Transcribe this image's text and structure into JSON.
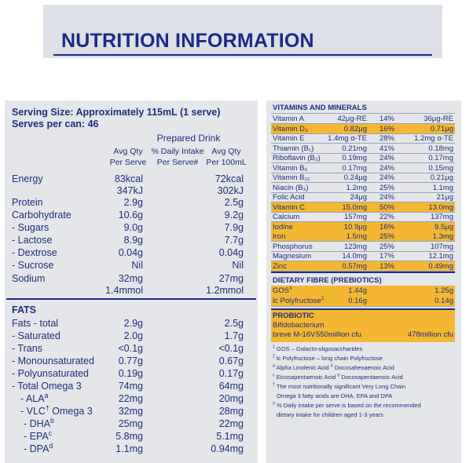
{
  "title": "NUTRITION INFORMATION",
  "serving": {
    "size": "Serving Size: Approximately 115mL (1 serve)",
    "per_can": "Serves per can: 46"
  },
  "headers": {
    "prepared": "Prepared Drink",
    "col1": [
      "Avg Qty",
      "Per Serve"
    ],
    "col2": [
      "% Daily Intake",
      "Per Serve#"
    ],
    "col3": [
      "Avg Qty",
      "Per 100mL"
    ]
  },
  "nutrients": [
    {
      "label": "Energy",
      "per_serve": "83kcal",
      "per_100": "72kcal"
    },
    {
      "label": "",
      "per_serve": "347kJ",
      "per_100": "302kJ"
    },
    {
      "label": "Protein",
      "per_serve": "2.9g",
      "per_100": "2.5g"
    },
    {
      "label": "Carbohydrate",
      "per_serve": "10.6g",
      "per_100": "9.2g"
    },
    {
      "label": "- Sugars",
      "per_serve": "9.0g",
      "per_100": "7.9g"
    },
    {
      "label": "- Lactose",
      "per_serve": "8.9g",
      "per_100": "7.7g"
    },
    {
      "label": "- Dextrose",
      "per_serve": "0.04g",
      "per_100": "0.04g"
    },
    {
      "label": "- Sucrose",
      "per_serve": "Nil",
      "per_100": "Nil"
    },
    {
      "label": "Sodium",
      "per_serve": "32mg",
      "per_100": "27mg"
    },
    {
      "label": "",
      "per_serve": "1.4mmol",
      "per_100": "1.2mmol"
    }
  ],
  "fats": {
    "heading": "FATS",
    "rows": [
      {
        "label": "Fats - total",
        "sup": "",
        "label_after": "",
        "per_serve": "2.9g",
        "per_100": "2.5g"
      },
      {
        "label": "- Saturated",
        "sup": "",
        "label_after": "",
        "per_serve": "2.0g",
        "per_100": "1.7g"
      },
      {
        "label": "- Trans",
        "sup": "",
        "label_after": "",
        "per_serve": "<0.1g",
        "per_100": "<0.1g"
      },
      {
        "label": "- Monounsaturated",
        "sup": "",
        "label_after": "",
        "per_serve": "0.77g",
        "per_100": "0.67g"
      },
      {
        "label": "- Polyunsaturated",
        "sup": "",
        "label_after": "",
        "per_serve": "0.19g",
        "per_100": "0.17g"
      },
      {
        "label": "- Total Omega 3",
        "sup": "",
        "label_after": "",
        "per_serve": "74mg",
        "per_100": "64mg"
      },
      {
        "label": "- ALA",
        "sup": "a",
        "label_after": "",
        "per_serve": "22mg",
        "per_100": "20mg"
      },
      {
        "label": "- VLC",
        "sup": "†",
        "label_after": " Omega 3",
        "per_serve": "32mg",
        "per_100": "28mg"
      },
      {
        "label": "- DHA",
        "sup": "b",
        "label_after": "",
        "per_serve": "25mg",
        "per_100": "22mg"
      },
      {
        "label": "- EPA",
        "sup": "c",
        "label_after": "",
        "per_serve": "5.8mg",
        "per_100": "5.1mg"
      },
      {
        "label": "- DPA",
        "sup": "d",
        "label_after": "",
        "per_serve": "1.1mg",
        "per_100": "0.94mg"
      }
    ]
  },
  "vitamins": {
    "heading": "VITAMINS AND MINERALS",
    "highlight_color": "#f3b731",
    "rows": [
      {
        "label": "Vitamin A",
        "per_serve": "42μg-RE",
        "pct": "14%",
        "per_100": "36μg-RE",
        "highlight": false
      },
      {
        "label": "Vitamin D₃",
        "per_serve": "0.82μg",
        "pct": "16%",
        "per_100": "0.71μg",
        "highlight": true
      },
      {
        "label": "Vitamin E",
        "per_serve": "1.4mg α-TE",
        "pct": "28%",
        "per_100": "1.2mg α-TE",
        "highlight": false
      },
      {
        "label": "Thiamin (B₁)",
        "per_serve": "0.21mg",
        "pct": "41%",
        "per_100": "0.18mg",
        "highlight": false
      },
      {
        "label": "Riboflavin (B₂)",
        "per_serve": "0.19mg",
        "pct": "24%",
        "per_100": "0.17mg",
        "highlight": false
      },
      {
        "label": "Vitamin B₆",
        "per_serve": "0.17mg",
        "pct": "24%",
        "per_100": "0.15mg",
        "highlight": false
      },
      {
        "label": "Vitamin B₁₂",
        "per_serve": "0.24μg",
        "pct": "24%",
        "per_100": "0.21μg",
        "highlight": false
      },
      {
        "label": "Niacin (B₃)",
        "per_serve": "1.2mg",
        "pct": "25%",
        "per_100": "1.1mg",
        "highlight": false
      },
      {
        "label": "Folic Acid",
        "per_serve": "24μg",
        "pct": "24%",
        "per_100": "21μg",
        "highlight": false
      },
      {
        "label": "Vitamin C",
        "per_serve": "15.0mg",
        "pct": "50%",
        "per_100": "13.0mg",
        "highlight": true
      },
      {
        "label": "Calcium",
        "per_serve": "157mg",
        "pct": "22%",
        "per_100": "137mg",
        "highlight": false
      },
      {
        "label": "Iodine",
        "per_serve": "10.9μg",
        "pct": "16%",
        "per_100": "9.5μg",
        "highlight": true
      },
      {
        "label": "Iron",
        "per_serve": "1.5mg",
        "pct": "25%",
        "per_100": "1.3mg",
        "highlight": true
      },
      {
        "label": "Phosphorus",
        "per_serve": "123mg",
        "pct": "25%",
        "per_100": "107mg",
        "highlight": false
      },
      {
        "label": "Magnesium",
        "per_serve": "14.0mg",
        "pct": "17%",
        "per_100": "12.1mg",
        "highlight": false
      },
      {
        "label": "Zinc",
        "per_serve": "0.57mg",
        "pct": "13%",
        "per_100": "0.49mg",
        "highlight": true
      }
    ]
  },
  "fibre": {
    "heading": "DIETARY FIBRE (PREBIOTICS)",
    "rows": [
      {
        "label": "GOS",
        "sup": "1",
        "per_serve": "1.44g",
        "per_100": "1.25g"
      },
      {
        "label": "lc Polyfructose",
        "sup": "2",
        "per_serve": "0.16g",
        "per_100": "0.14g"
      }
    ]
  },
  "probiotic": {
    "heading": "PROBIOTIC",
    "line1": "Bifidobacterium",
    "line2": "breve M-16V",
    "per_serve": "550million cfu",
    "per_100": "478million cfu"
  },
  "footnotes": [
    {
      "sup": "1",
      "text": " GOS – Galacto-oligosaccharides"
    },
    {
      "sup": "2",
      "text": " lc Polyfructose – long chain Polyfructose"
    },
    {
      "sup": "a",
      "text": " Alpha Linolenic Acid ",
      "sup2": "b",
      "text2": " Docosahexaenoic Acid"
    },
    {
      "sup": "c",
      "text": " Eicosapentaenoic Acid ",
      "sup2": "d",
      "text2": " Docosapentaenoic Acid"
    },
    {
      "sup": "†",
      "text": " The most nutritionally significant Very Long Chain"
    },
    {
      "sup": "",
      "text": "Omega 3 fatty acids are DHA, EPA and DPA"
    },
    {
      "sup": "#",
      "text": " % Daily intake per serve is based on the recommended"
    },
    {
      "sup": "",
      "text": "dietary intake for children aged 1-3 years"
    }
  ]
}
